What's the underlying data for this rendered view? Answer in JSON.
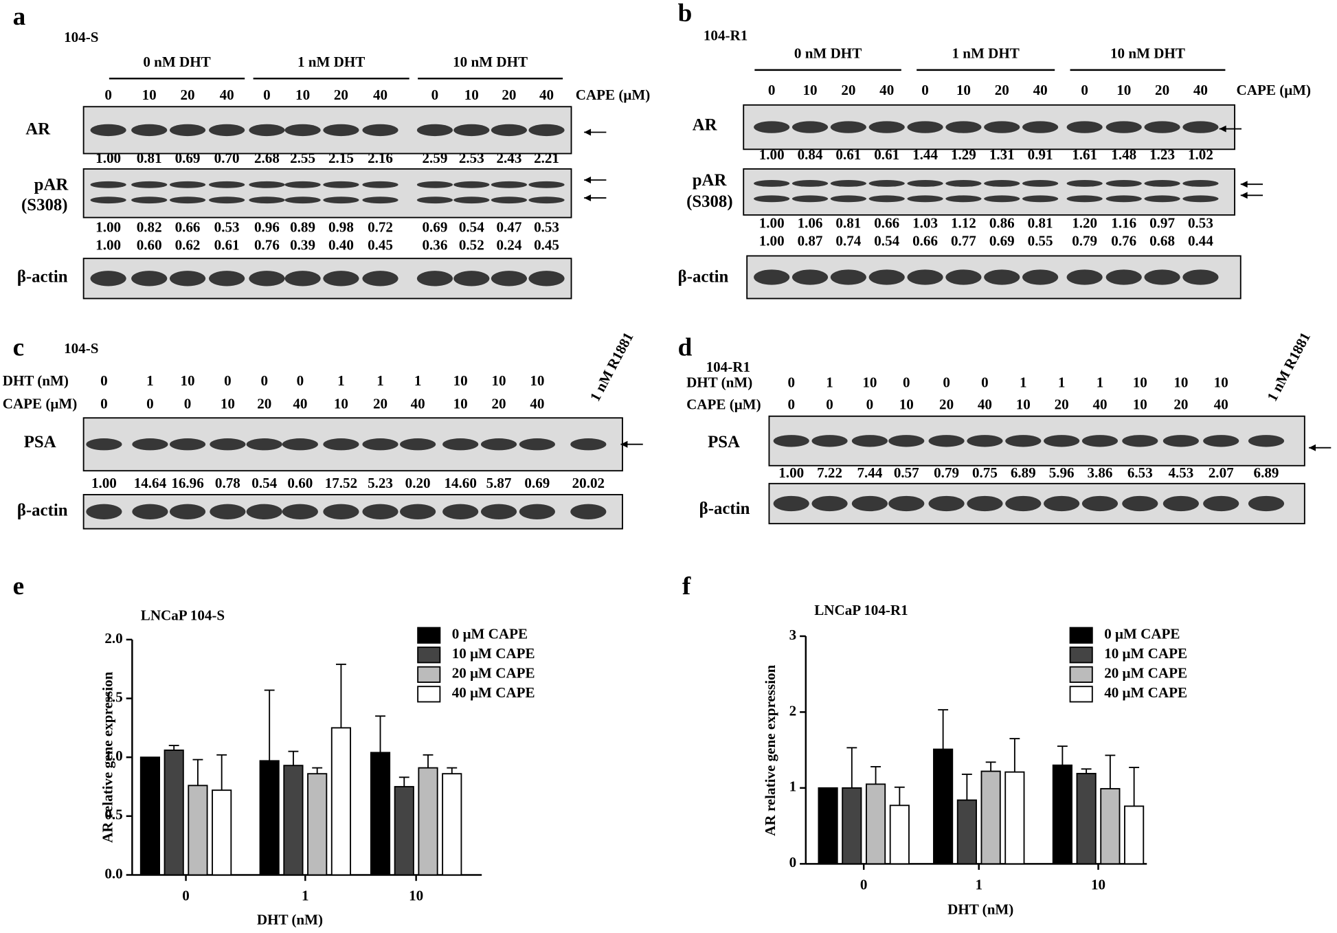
{
  "panels": [
    {
      "letter": "a",
      "cell": "104-S",
      "groups": [
        "0 nM DHT",
        "1 nM DHT",
        "10 nM DHT"
      ],
      "lanes": [
        "0",
        "10",
        "20",
        "40",
        "0",
        "10",
        "20",
        "40",
        "0",
        "10",
        "20",
        "40"
      ],
      "lane_unit": "CAPE (μM)",
      "rows": [
        {
          "label": "AR",
          "values": [
            "1.00",
            "0.81",
            "0.69",
            "0.70",
            "2.68",
            "2.55",
            "2.15",
            "2.16",
            "2.59",
            "2.53",
            "2.43",
            "2.21"
          ]
        },
        {
          "label": "pAR",
          "sublabel": "(S308)",
          "values": [
            "1.00",
            "0.82",
            "0.66",
            "0.53",
            "0.96",
            "0.89",
            "0.98",
            "0.72",
            "0.69",
            "0.54",
            "0.47",
            "0.53"
          ],
          "values2": [
            "1.00",
            "0.60",
            "0.62",
            "0.61",
            "0.76",
            "0.39",
            "0.40",
            "0.45",
            "0.36",
            "0.52",
            "0.24",
            "0.45"
          ]
        },
        {
          "label": "β-actin"
        }
      ]
    },
    {
      "letter": "b",
      "cell": "104-R1",
      "groups": [
        "0 nM DHT",
        "1 nM DHT",
        "10 nM DHT"
      ],
      "lanes": [
        "0",
        "10",
        "20",
        "40",
        "0",
        "10",
        "20",
        "40",
        "0",
        "10",
        "20",
        "40"
      ],
      "lane_unit": "CAPE (μM)",
      "rows": [
        {
          "label": "AR",
          "values": [
            "1.00",
            "0.84",
            "0.61",
            "0.61",
            "1.44",
            "1.29",
            "1.31",
            "0.91",
            "1.61",
            "1.48",
            "1.23",
            "1.02"
          ]
        },
        {
          "label": "pAR",
          "sublabel": "(S308)",
          "values": [
            "1.00",
            "1.06",
            "0.81",
            "0.66",
            "1.03",
            "1.12",
            "0.86",
            "0.81",
            "1.20",
            "1.16",
            "0.97",
            "0.53"
          ],
          "values2": [
            "1.00",
            "0.87",
            "0.74",
            "0.54",
            "0.66",
            "0.77",
            "0.69",
            "0.55",
            "0.79",
            "0.76",
            "0.68",
            "0.44"
          ]
        },
        {
          "label": "β-actin"
        }
      ]
    },
    {
      "letter": "c",
      "cell": "104-S",
      "conditions": [
        {
          "label": "DHT (nM)",
          "lanes": [
            "0",
            "1",
            "10",
            "0",
            "0",
            "0",
            "1",
            "1",
            "1",
            "10",
            "10",
            "10"
          ]
        },
        {
          "label": "CAPE (μM)",
          "lanes": [
            "0",
            "0",
            "0",
            "10",
            "20",
            "40",
            "10",
            "20",
            "40",
            "10",
            "20",
            "40"
          ]
        }
      ],
      "extra_lane": "1 nM R1881",
      "rows": [
        {
          "label": "PSA",
          "values": [
            "1.00",
            "14.64",
            "16.96",
            "0.78",
            "0.54",
            "0.60",
            "17.52",
            "5.23",
            "0.20",
            "14.60",
            "5.87",
            "0.69",
            "20.02"
          ]
        },
        {
          "label": "β-actin"
        }
      ]
    },
    {
      "letter": "d",
      "cell": "104-R1",
      "conditions": [
        {
          "label": "DHT (nM)",
          "lanes": [
            "0",
            "1",
            "10",
            "0",
            "0",
            "0",
            "1",
            "1",
            "1",
            "10",
            "10",
            "10"
          ]
        },
        {
          "label": "CAPE (μM)",
          "lanes": [
            "0",
            "0",
            "0",
            "10",
            "20",
            "40",
            "10",
            "20",
            "40",
            "10",
            "20",
            "40"
          ]
        }
      ],
      "extra_lane": "1 nM R1881",
      "rows": [
        {
          "label": "PSA",
          "values": [
            "1.00",
            "7.22",
            "7.44",
            "0.57",
            "0.79",
            "0.75",
            "6.89",
            "5.96",
            "3.86",
            "6.53",
            "4.53",
            "2.07",
            "6.89"
          ]
        },
        {
          "label": "β-actin"
        }
      ]
    }
  ],
  "chart_data": [
    {
      "type": "bar",
      "letter": "e",
      "title": "LNCaP 104-S",
      "xlabel": "DHT (nM)",
      "ylabel": "AR relative gene expression",
      "categories": [
        "0",
        "1",
        "10"
      ],
      "series": [
        {
          "name": "0 μM CAPE",
          "color": "#000000",
          "values": [
            1.0,
            0.97,
            1.04
          ],
          "errors": [
            null,
            0.6,
            0.31
          ]
        },
        {
          "name": "10 μM CAPE",
          "color": "#444444",
          "values": [
            1.06,
            0.93,
            0.75
          ],
          "errors": [
            0.04,
            0.12,
            0.08
          ]
        },
        {
          "name": "20 μM CAPE",
          "color": "#bbbbbb",
          "values": [
            0.76,
            0.86,
            0.91
          ],
          "errors": [
            0.22,
            0.05,
            0.11
          ]
        },
        {
          "name": "40 μM CAPE",
          "color": "#ffffff",
          "values": [
            0.72,
            1.25,
            0.86
          ],
          "errors": [
            0.3,
            0.54,
            0.05
          ]
        }
      ],
      "ylim": [
        0,
        2
      ],
      "yticks": [
        {
          "value": 0,
          "label": "0.0"
        },
        {
          "value": 0.5,
          "label": "0.5"
        },
        {
          "value": 1,
          "label": "1.0"
        },
        {
          "value": 1.5,
          "label": "1.5"
        },
        {
          "value": 2,
          "label": "2.0"
        }
      ]
    },
    {
      "type": "bar",
      "letter": "f",
      "title": "LNCaP 104-R1",
      "xlabel": "DHT (nM)",
      "ylabel": "AR relative gene expression",
      "categories": [
        "0",
        "1",
        "10"
      ],
      "series": [
        {
          "name": "0 μM CAPE",
          "color": "#000000",
          "values": [
            1.0,
            1.51,
            1.3
          ],
          "errors": [
            null,
            0.52,
            0.25
          ]
        },
        {
          "name": "10 μM CAPE",
          "color": "#444444",
          "values": [
            1.0,
            0.84,
            1.19
          ],
          "errors": [
            0.53,
            0.34,
            0.06
          ]
        },
        {
          "name": "20 μM CAPE",
          "color": "#bbbbbb",
          "values": [
            1.05,
            1.22,
            0.99
          ],
          "errors": [
            0.23,
            0.12,
            0.44
          ]
        },
        {
          "name": "40 μM CAPE",
          "color": "#ffffff",
          "values": [
            0.77,
            1.21,
            0.76
          ],
          "errors": [
            0.24,
            0.44,
            0.51
          ]
        }
      ],
      "ylim": [
        0,
        3
      ],
      "yticks": [
        0,
        1,
        2,
        3
      ]
    }
  ]
}
